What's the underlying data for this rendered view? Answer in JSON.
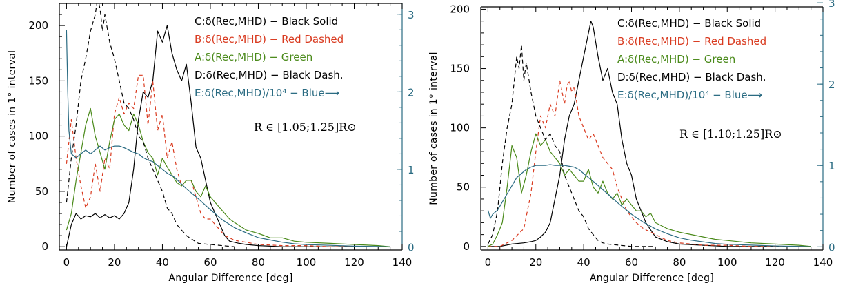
{
  "chart_data": [
    {
      "type": "line",
      "xlabel": "Angular Difference [deg]",
      "ylabel": "Number of cases in 1° interval",
      "xlim": [
        -3,
        140
      ],
      "ylim": [
        -3,
        220
      ],
      "xticks": [
        0,
        20,
        40,
        60,
        80,
        100,
        120,
        140
      ],
      "yticks": [
        0,
        50,
        100,
        150,
        200
      ],
      "y2lim": [
        -0.04,
        3.14
      ],
      "y2ticks": [
        0,
        1,
        2,
        3
      ],
      "y2color": "#2a6b82",
      "annotation": "R ∈ [1.05;1.25]R⊙",
      "legend": [
        {
          "text": "C:δ(Rec,MHD) − Black Solid",
          "color": "#000000"
        },
        {
          "text": "B:δ(Rec,MHD) − Red Dashed",
          "color": "#d93a1f"
        },
        {
          "text": "A:δ(Rec,MHD) − Green",
          "color": "#4a8a1a"
        },
        {
          "text": "D:δ(Rec,MHD) − Black Dash.",
          "color": "#000000"
        },
        {
          "text": "E:δ(Rec,MHD)/10⁴ − Blue⟶",
          "color": "#2a6b82"
        }
      ],
      "series": [
        {
          "key": "C",
          "color": "#000000",
          "dash": "",
          "axis": "left",
          "x": [
            0,
            2,
            4,
            6,
            8,
            10,
            12,
            14,
            16,
            18,
            20,
            22,
            24,
            26,
            28,
            30,
            32,
            34,
            36,
            38,
            40,
            42,
            44,
            46,
            48,
            50,
            52,
            54,
            56,
            58,
            60,
            62,
            64,
            66,
            68,
            70,
            72,
            75,
            80,
            90,
            100,
            110,
            120,
            130,
            135
          ],
          "y": [
            0,
            20,
            30,
            25,
            28,
            27,
            30,
            26,
            29,
            26,
            28,
            25,
            30,
            40,
            70,
            115,
            140,
            135,
            150,
            195,
            185,
            200,
            175,
            160,
            150,
            165,
            130,
            90,
            80,
            60,
            40,
            30,
            20,
            10,
            5,
            4,
            3,
            2,
            1,
            0,
            0,
            0,
            0,
            0,
            0
          ]
        },
        {
          "key": "B",
          "color": "#d93a1f",
          "dash": "5,4",
          "axis": "left",
          "x": [
            0,
            2,
            4,
            6,
            8,
            10,
            12,
            14,
            16,
            18,
            20,
            22,
            24,
            26,
            28,
            30,
            32,
            34,
            36,
            38,
            40,
            42,
            44,
            46,
            48,
            50,
            52,
            54,
            56,
            58,
            60,
            62,
            64,
            66,
            68,
            70,
            72,
            75,
            80,
            90,
            100,
            110,
            120,
            130,
            135
          ],
          "y": [
            75,
            115,
            80,
            55,
            35,
            45,
            75,
            50,
            80,
            70,
            120,
            135,
            120,
            130,
            125,
            155,
            155,
            110,
            150,
            105,
            120,
            80,
            95,
            70,
            55,
            60,
            60,
            45,
            30,
            25,
            25,
            20,
            15,
            10,
            8,
            6,
            5,
            4,
            2,
            1,
            1,
            0,
            0,
            0,
            0
          ]
        },
        {
          "key": "A",
          "color": "#4a8a1a",
          "dash": "",
          "axis": "left",
          "x": [
            0,
            2,
            4,
            6,
            8,
            10,
            12,
            14,
            16,
            18,
            20,
            22,
            24,
            26,
            28,
            30,
            32,
            34,
            36,
            38,
            40,
            42,
            44,
            46,
            48,
            50,
            52,
            54,
            56,
            58,
            60,
            62,
            64,
            66,
            68,
            70,
            75,
            80,
            85,
            90,
            95,
            100,
            110,
            120,
            130,
            135
          ],
          "y": [
            15,
            30,
            60,
            85,
            110,
            125,
            100,
            85,
            70,
            95,
            115,
            120,
            110,
            105,
            120,
            110,
            95,
            85,
            80,
            65,
            80,
            72,
            65,
            58,
            55,
            60,
            60,
            50,
            45,
            55,
            45,
            40,
            35,
            30,
            25,
            22,
            15,
            12,
            8,
            8,
            5,
            4,
            3,
            2,
            1,
            0
          ]
        },
        {
          "key": "D",
          "color": "#000000",
          "dash": "6,4",
          "axis": "left",
          "x": [
            0,
            2,
            4,
            6,
            8,
            10,
            12,
            13,
            14,
            15,
            16,
            18,
            20,
            22,
            24,
            26,
            28,
            30,
            32,
            34,
            36,
            38,
            40,
            42,
            44,
            46,
            48,
            50,
            55,
            60,
            65,
            70
          ],
          "y": [
            40,
            80,
            110,
            150,
            170,
            195,
            210,
            225,
            215,
            195,
            210,
            185,
            170,
            150,
            130,
            125,
            115,
            100,
            95,
            80,
            70,
            60,
            50,
            35,
            30,
            20,
            15,
            10,
            3,
            2,
            1,
            0
          ]
        },
        {
          "key": "E",
          "color": "#2a6b82",
          "dash": "",
          "axis": "right",
          "x": [
            0,
            0.5,
            1,
            2,
            4,
            6,
            8,
            10,
            12,
            14,
            16,
            18,
            20,
            22,
            24,
            26,
            28,
            30,
            32,
            34,
            36,
            38,
            40,
            42,
            45,
            50,
            55,
            60,
            65,
            70,
            75,
            80,
            85,
            90,
            95,
            100,
            110,
            120,
            130,
            135
          ],
          "y": [
            2.8,
            2.0,
            1.5,
            1.2,
            1.15,
            1.2,
            1.25,
            1.2,
            1.25,
            1.3,
            1.25,
            1.28,
            1.3,
            1.3,
            1.28,
            1.25,
            1.22,
            1.2,
            1.15,
            1.12,
            1.1,
            1.05,
            1.0,
            0.95,
            0.9,
            0.75,
            0.62,
            0.48,
            0.35,
            0.25,
            0.18,
            0.12,
            0.09,
            0.06,
            0.04,
            0.03,
            0.02,
            0.01,
            0.005,
            0.0
          ]
        }
      ]
    },
    {
      "type": "line",
      "xlabel": "Angular Difference [deg]",
      "ylabel": "Number of cases in 1° interval",
      "xlim": [
        -3,
        140
      ],
      "ylim": [
        -3,
        202
      ],
      "xticks": [
        0,
        20,
        40,
        60,
        80,
        100,
        120,
        140
      ],
      "yticks": [
        0,
        50,
        100,
        150,
        200
      ],
      "y2lim": [
        -0.04,
        2.95
      ],
      "y2ticks": [
        0,
        1,
        2,
        3
      ],
      "y2color": "#2a6b82",
      "annotation": "R ∈ [1.10;1.25]R⊙",
      "legend": [
        {
          "text": "C:δ(Rec,MHD) − Black Solid",
          "color": "#000000"
        },
        {
          "text": "B:δ(Rec,MHD) − Red Dashed",
          "color": "#d93a1f"
        },
        {
          "text": "A:δ(Rec,MHD) − Green",
          "color": "#4a8a1a"
        },
        {
          "text": "D:δ(Rec,MHD) − Black Dash.",
          "color": "#000000"
        },
        {
          "text": "E:δ(Rec,MHD)/10⁴ − Blue⟶",
          "color": "#2a6b82"
        }
      ],
      "series": [
        {
          "key": "C",
          "color": "#000000",
          "dash": "",
          "axis": "left",
          "x": [
            0,
            5,
            10,
            15,
            18,
            20,
            22,
            24,
            26,
            28,
            30,
            32,
            34,
            36,
            38,
            40,
            42,
            43,
            44,
            46,
            48,
            50,
            52,
            54,
            56,
            58,
            60,
            62,
            64,
            66,
            70,
            75,
            80,
            90,
            100,
            110,
            120,
            130,
            135
          ],
          "y": [
            0,
            0,
            2,
            3,
            4,
            5,
            8,
            12,
            20,
            40,
            60,
            90,
            110,
            120,
            140,
            160,
            180,
            190,
            185,
            160,
            140,
            150,
            130,
            120,
            90,
            70,
            60,
            40,
            30,
            20,
            8,
            4,
            2,
            1,
            0,
            0,
            0,
            0,
            0
          ]
        },
        {
          "key": "B",
          "color": "#d93a1f",
          "dash": "5,4",
          "axis": "left",
          "x": [
            0,
            5,
            10,
            15,
            18,
            20,
            22,
            24,
            26,
            28,
            30,
            32,
            33,
            34,
            35,
            36,
            38,
            40,
            42,
            44,
            46,
            48,
            50,
            52,
            54,
            56,
            58,
            60,
            62,
            65,
            70,
            75,
            80,
            90,
            100,
            110,
            120,
            130,
            135
          ],
          "y": [
            0,
            0,
            5,
            15,
            45,
            80,
            110,
            100,
            120,
            110,
            140,
            120,
            135,
            140,
            130,
            135,
            110,
            100,
            90,
            95,
            85,
            75,
            70,
            65,
            50,
            40,
            30,
            25,
            20,
            15,
            10,
            5,
            3,
            1,
            1,
            0,
            0,
            0,
            0
          ]
        },
        {
          "key": "A",
          "color": "#4a8a1a",
          "dash": "",
          "axis": "left",
          "x": [
            0,
            2,
            4,
            6,
            8,
            10,
            12,
            14,
            16,
            18,
            20,
            22,
            24,
            26,
            28,
            30,
            32,
            34,
            36,
            38,
            40,
            42,
            44,
            46,
            48,
            50,
            52,
            54,
            56,
            58,
            60,
            62,
            64,
            66,
            68,
            70,
            75,
            80,
            85,
            90,
            95,
            100,
            110,
            120,
            130,
            135
          ],
          "y": [
            0,
            2,
            10,
            20,
            50,
            85,
            75,
            45,
            60,
            80,
            95,
            85,
            90,
            80,
            75,
            70,
            60,
            65,
            60,
            55,
            55,
            65,
            50,
            45,
            55,
            45,
            40,
            45,
            35,
            40,
            35,
            30,
            30,
            25,
            28,
            20,
            15,
            12,
            10,
            8,
            6,
            5,
            3,
            2,
            1,
            0
          ]
        },
        {
          "key": "D",
          "color": "#000000",
          "dash": "6,4",
          "axis": "left",
          "x": [
            0,
            2,
            4,
            6,
            8,
            10,
            12,
            13,
            14,
            15,
            16,
            18,
            20,
            22,
            24,
            26,
            28,
            30,
            32,
            34,
            36,
            38,
            40,
            42,
            44,
            46,
            48,
            50,
            55,
            60,
            65,
            70
          ],
          "y": [
            2,
            10,
            30,
            70,
            100,
            120,
            160,
            150,
            170,
            140,
            155,
            130,
            110,
            100,
            90,
            95,
            85,
            80,
            60,
            50,
            40,
            30,
            25,
            15,
            10,
            5,
            3,
            2,
            1,
            0,
            0,
            0
          ]
        },
        {
          "key": "E",
          "color": "#2a6b82",
          "dash": "",
          "axis": "right",
          "x": [
            0,
            1,
            2,
            4,
            6,
            8,
            10,
            12,
            14,
            16,
            18,
            20,
            22,
            24,
            26,
            28,
            30,
            32,
            34,
            36,
            38,
            40,
            42,
            45,
            50,
            55,
            60,
            65,
            70,
            75,
            80,
            85,
            90,
            95,
            100,
            110,
            120,
            130,
            135
          ],
          "y": [
            0.45,
            0.35,
            0.4,
            0.45,
            0.55,
            0.65,
            0.75,
            0.85,
            0.9,
            0.95,
            0.98,
            1.0,
            1.0,
            1.0,
            1.01,
            1.0,
            1.0,
            1.0,
            0.99,
            0.98,
            0.95,
            0.9,
            0.85,
            0.78,
            0.65,
            0.52,
            0.4,
            0.3,
            0.22,
            0.16,
            0.11,
            0.08,
            0.06,
            0.04,
            0.03,
            0.02,
            0.01,
            0.005,
            0.0
          ]
        }
      ]
    }
  ]
}
